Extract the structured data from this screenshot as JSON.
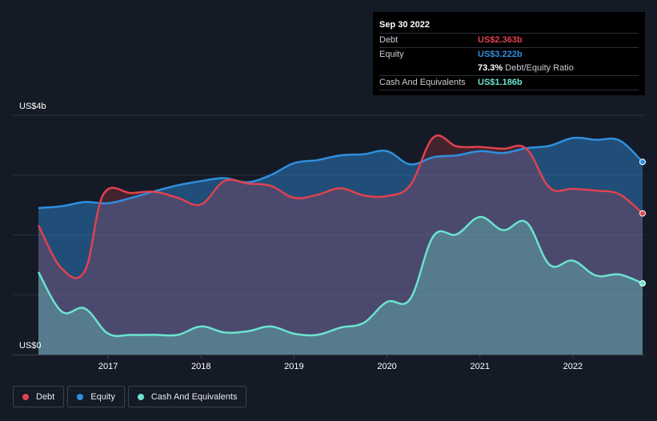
{
  "colors": {
    "debt": "#e2414f",
    "equity": "#2f8fde",
    "cash": "#6ce3cf",
    "background": "#151b26"
  },
  "tooltip": {
    "date": "Sep 30 2022",
    "debt_label": "Debt",
    "debt_value": "US$2.363b",
    "equity_label": "Equity",
    "equity_value": "US$3.222b",
    "ratio_value": "73.3%",
    "ratio_label": "Debt/Equity Ratio",
    "cash_label": "Cash And Equivalents",
    "cash_value": "US$1.186b"
  },
  "legend": [
    {
      "key": "debt",
      "label": "Debt",
      "color": "#e2414f"
    },
    {
      "key": "equity",
      "label": "Equity",
      "color": "#2f8fde"
    },
    {
      "key": "cash",
      "label": "Cash And Equivalents",
      "color": "#6ce3cf"
    }
  ],
  "chart_data": {
    "type": "area",
    "y_top_label": "US$4b",
    "y_bottom_label": "US$0",
    "ylim": [
      0,
      4.0
    ],
    "xlim": [
      2016.1,
      2022.75
    ],
    "x_ticks": [
      "2017",
      "2018",
      "2019",
      "2020",
      "2021",
      "2022"
    ],
    "x_tick_values": [
      2017,
      2018,
      2019,
      2020,
      2021,
      2022
    ],
    "grid": "horizontal",
    "legend_position": "bottom-left",
    "series": [
      {
        "name": "Debt",
        "key": "debt",
        "points": [
          [
            2016.25,
            2.16
          ],
          [
            2016.5,
            1.44
          ],
          [
            2016.75,
            1.4
          ],
          [
            2016.95,
            2.68
          ],
          [
            2017.25,
            2.7
          ],
          [
            2017.5,
            2.72
          ],
          [
            2017.75,
            2.62
          ],
          [
            2018.0,
            2.51
          ],
          [
            2018.25,
            2.9
          ],
          [
            2018.5,
            2.86
          ],
          [
            2018.75,
            2.82
          ],
          [
            2019.0,
            2.62
          ],
          [
            2019.25,
            2.67
          ],
          [
            2019.5,
            2.78
          ],
          [
            2019.75,
            2.66
          ],
          [
            2020.0,
            2.65
          ],
          [
            2020.25,
            2.83
          ],
          [
            2020.5,
            3.63
          ],
          [
            2020.75,
            3.48
          ],
          [
            2021.0,
            3.47
          ],
          [
            2021.25,
            3.44
          ],
          [
            2021.5,
            3.44
          ],
          [
            2021.75,
            2.79
          ],
          [
            2022.0,
            2.77
          ],
          [
            2022.25,
            2.74
          ],
          [
            2022.5,
            2.68
          ],
          [
            2022.75,
            2.36
          ]
        ]
      },
      {
        "name": "Equity",
        "key": "equity",
        "points": [
          [
            2016.25,
            2.45
          ],
          [
            2016.5,
            2.48
          ],
          [
            2016.75,
            2.55
          ],
          [
            2017.0,
            2.53
          ],
          [
            2017.25,
            2.62
          ],
          [
            2017.5,
            2.73
          ],
          [
            2017.75,
            2.83
          ],
          [
            2018.0,
            2.9
          ],
          [
            2018.25,
            2.95
          ],
          [
            2018.5,
            2.88
          ],
          [
            2018.75,
            3.0
          ],
          [
            2019.0,
            3.2
          ],
          [
            2019.25,
            3.25
          ],
          [
            2019.5,
            3.33
          ],
          [
            2019.75,
            3.35
          ],
          [
            2020.0,
            3.4
          ],
          [
            2020.25,
            3.18
          ],
          [
            2020.5,
            3.3
          ],
          [
            2020.75,
            3.33
          ],
          [
            2021.0,
            3.4
          ],
          [
            2021.25,
            3.37
          ],
          [
            2021.5,
            3.45
          ],
          [
            2021.75,
            3.49
          ],
          [
            2022.0,
            3.62
          ],
          [
            2022.25,
            3.59
          ],
          [
            2022.5,
            3.58
          ],
          [
            2022.75,
            3.22
          ]
        ]
      },
      {
        "name": "Cash And Equivalents",
        "key": "cash",
        "points": [
          [
            2016.25,
            1.38
          ],
          [
            2016.5,
            0.72
          ],
          [
            2016.75,
            0.77
          ],
          [
            2017.0,
            0.35
          ],
          [
            2017.25,
            0.33
          ],
          [
            2017.5,
            0.33
          ],
          [
            2017.75,
            0.33
          ],
          [
            2018.0,
            0.47
          ],
          [
            2018.25,
            0.37
          ],
          [
            2018.5,
            0.39
          ],
          [
            2018.75,
            0.47
          ],
          [
            2019.0,
            0.35
          ],
          [
            2019.25,
            0.33
          ],
          [
            2019.5,
            0.45
          ],
          [
            2019.75,
            0.53
          ],
          [
            2020.0,
            0.88
          ],
          [
            2020.25,
            0.93
          ],
          [
            2020.5,
            1.98
          ],
          [
            2020.75,
            2.01
          ],
          [
            2021.0,
            2.3
          ],
          [
            2021.25,
            2.08
          ],
          [
            2021.5,
            2.21
          ],
          [
            2021.75,
            1.5
          ],
          [
            2022.0,
            1.57
          ],
          [
            2022.25,
            1.32
          ],
          [
            2022.5,
            1.34
          ],
          [
            2022.75,
            1.19
          ]
        ]
      }
    ]
  }
}
